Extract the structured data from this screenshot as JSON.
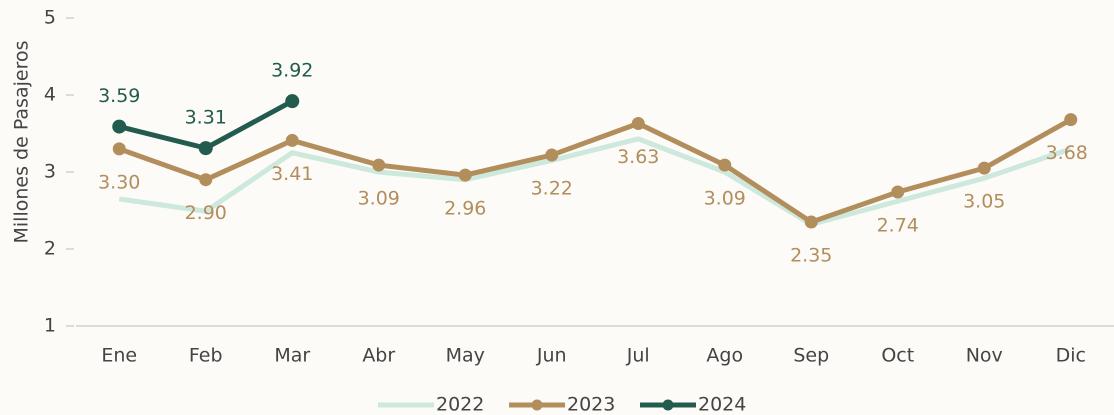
{
  "chart_data": {
    "type": "line",
    "y_label": "Millones de Pasajeros",
    "categories": [
      "Ene",
      "Feb",
      "Mar",
      "Abr",
      "May",
      "Jun",
      "Jul",
      "Ago",
      "Sep",
      "Oct",
      "Nov",
      "Dic"
    ],
    "ylim": [
      1,
      5
    ],
    "yticks": [
      1,
      2,
      3,
      4,
      5
    ],
    "legend": "bottom",
    "series": [
      {
        "name": "2022",
        "color": "#cde8dd",
        "values": [
          2.65,
          2.49,
          3.25,
          3.0,
          2.9,
          3.15,
          3.43,
          3.0,
          2.32,
          2.62,
          2.92,
          3.3
        ]
      },
      {
        "name": "2023",
        "color": "#b38e5d",
        "values": [
          3.3,
          2.9,
          3.41,
          3.09,
          2.96,
          3.22,
          3.63,
          3.09,
          2.35,
          2.74,
          3.05,
          3.68
        ],
        "value_labels": [
          "3.30",
          "2.90",
          "3.41",
          "3.09",
          "2.96",
          "3.22",
          "3.63",
          "3.09",
          "2.35",
          "2.74",
          "3.05",
          "3.68"
        ]
      },
      {
        "name": "2024",
        "color": "#235b4e",
        "values": [
          3.59,
          3.31,
          3.92,
          null,
          null,
          null,
          null,
          null,
          null,
          null,
          null,
          null
        ],
        "value_labels": [
          "3.59",
          "3.31",
          "3.92",
          null,
          null,
          null,
          null,
          null,
          null,
          null,
          null,
          null
        ]
      }
    ]
  }
}
